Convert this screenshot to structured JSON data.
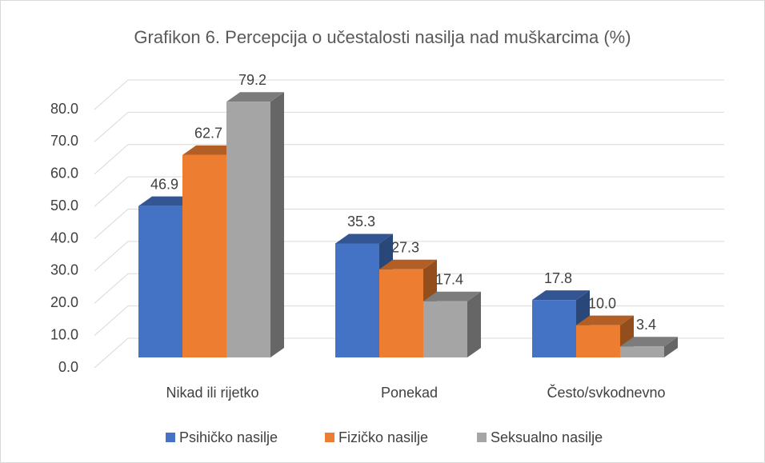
{
  "chart_data": {
    "type": "bar3d",
    "title": "Grafikon 6. Percepcija o učestalosti nasilja nad muškarcima (%)",
    "categories": [
      "Nikad ili rijetko",
      "Ponekad",
      "Često/svkodnevno"
    ],
    "series": [
      {
        "name": "Psihičko nasilje",
        "color": "#4472c4",
        "values": [
          46.9,
          35.3,
          17.8
        ],
        "value_labels": [
          "46.9",
          "35.3",
          "17.8"
        ]
      },
      {
        "name": "Fizičko nasilje",
        "color": "#ed7d31",
        "values": [
          62.7,
          27.3,
          10.0
        ],
        "value_labels": [
          "62.7",
          "27.3",
          "10.0"
        ]
      },
      {
        "name": "Seksualno nasilje",
        "color": "#a5a5a5",
        "values": [
          79.2,
          17.4,
          3.4
        ],
        "value_labels": [
          "79.2",
          "17.4",
          "3.4"
        ]
      }
    ],
    "ylim": [
      0,
      80
    ],
    "yticks": [
      {
        "value": 0,
        "label": "0.0"
      },
      {
        "value": 10,
        "label": "10.0"
      },
      {
        "value": 20,
        "label": "20.0"
      },
      {
        "value": 30,
        "label": "30.0"
      },
      {
        "value": 40,
        "label": "40.0"
      },
      {
        "value": 50,
        "label": "50.0"
      },
      {
        "value": 60,
        "label": "60.0"
      },
      {
        "value": 70,
        "label": "70.0"
      },
      {
        "value": 80,
        "label": "80.0"
      }
    ],
    "grid": true,
    "legend": "bottom"
  }
}
